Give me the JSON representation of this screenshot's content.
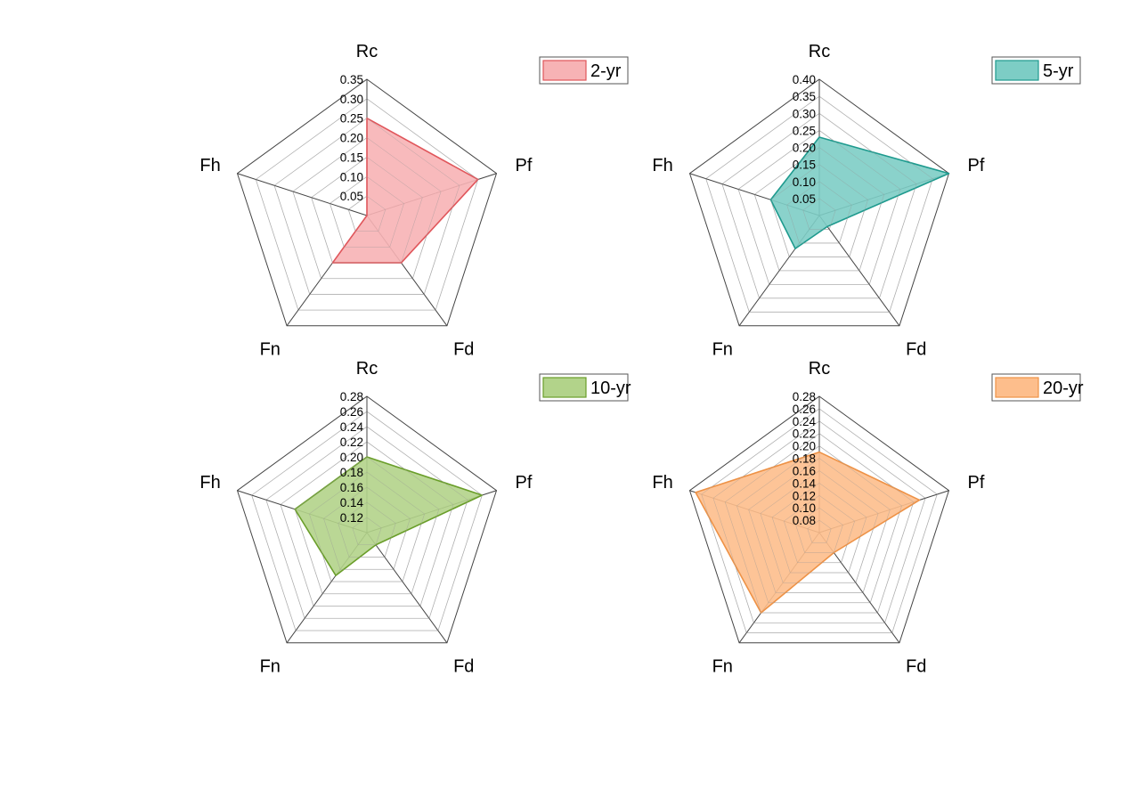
{
  "figure": {
    "axes": [
      "Rc",
      "Pf",
      "Fd",
      "Fn",
      "Fh"
    ]
  },
  "chart_data": [
    {
      "type": "radar",
      "axes": [
        "Rc",
        "Pf",
        "Fd",
        "Fn",
        "Fh"
      ],
      "ticks": [
        "0.05",
        "0.10",
        "0.15",
        "0.20",
        "0.25",
        "0.30",
        "0.35"
      ],
      "rmin": 0.0,
      "rmax": 0.35,
      "series": [
        {
          "name": "2-yr",
          "values": [
            0.25,
            0.3,
            0.15,
            0.15,
            0.0
          ]
        }
      ],
      "color_fill": "#f7b3b5",
      "color_line": "#e0565b",
      "legend_position": "top-right",
      "grid": true
    },
    {
      "type": "radar",
      "axes": [
        "Rc",
        "Pf",
        "Fd",
        "Fn",
        "Fh"
      ],
      "ticks": [
        "0.05",
        "0.10",
        "0.15",
        "0.20",
        "0.25",
        "0.30",
        "0.35",
        "0.40"
      ],
      "rmin": 0.0,
      "rmax": 0.4,
      "series": [
        {
          "name": "5-yr",
          "values": [
            0.23,
            0.4,
            0.04,
            0.12,
            0.15
          ]
        }
      ],
      "color_fill": "#7dcdc5",
      "color_line": "#1e9a8e",
      "legend_position": "top-right",
      "grid": true
    },
    {
      "type": "radar",
      "axes": [
        "Rc",
        "Pf",
        "Fd",
        "Fn",
        "Fh"
      ],
      "ticks": [
        "0.12",
        "0.14",
        "0.16",
        "0.18",
        "0.20",
        "0.22",
        "0.24",
        "0.26",
        "0.28"
      ],
      "rmin": 0.1,
      "rmax": 0.28,
      "series": [
        {
          "name": "10-yr",
          "values": [
            0.2,
            0.26,
            0.12,
            0.17,
            0.2
          ]
        }
      ],
      "color_fill": "#b2d38a",
      "color_line": "#6a9e2a",
      "legend_position": "top-right",
      "grid": true
    },
    {
      "type": "radar",
      "axes": [
        "Rc",
        "Pf",
        "Fd",
        "Fn",
        "Fh"
      ],
      "ticks": [
        "0.08",
        "0.10",
        "0.12",
        "0.14",
        "0.16",
        "0.18",
        "0.20",
        "0.22",
        "0.24",
        "0.26",
        "0.28"
      ],
      "rmin": 0.06,
      "rmax": 0.28,
      "series": [
        {
          "name": "20-yr",
          "values": [
            0.19,
            0.23,
            0.1,
            0.22,
            0.27
          ]
        }
      ],
      "color_fill": "#fdbe8c",
      "color_line": "#ee9246",
      "legend_position": "top-right",
      "grid": true
    }
  ]
}
